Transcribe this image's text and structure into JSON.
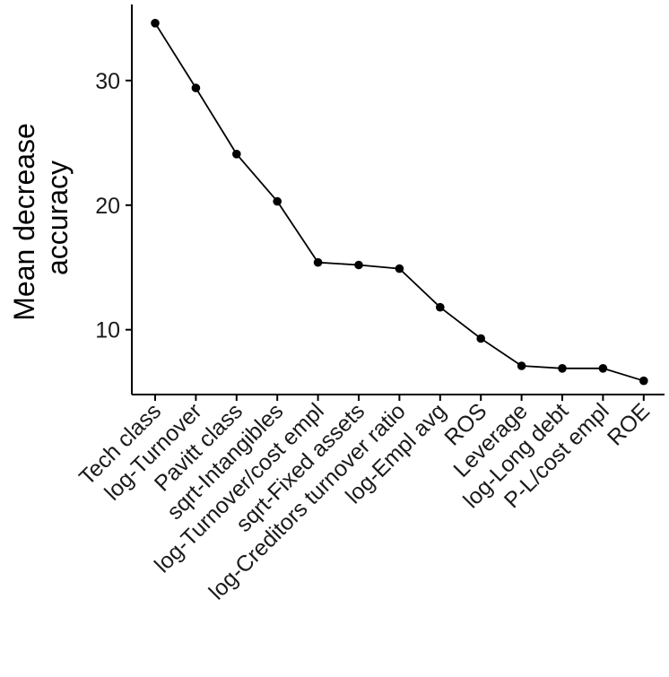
{
  "chart_data": {
    "type": "line",
    "title": "",
    "xlabel": "",
    "ylabel": "Mean decrease accuracy",
    "ylabel_lines": [
      "Mean decrease",
      "accuracy"
    ],
    "categories": [
      "Tech class",
      "log-Turnover",
      "Pavitt class",
      "sqrt-Intangibles",
      "log-Turnover/cost empl",
      "sqrt-Fixed assets",
      "log-Creditors turnover ratio",
      "log-Empl avg",
      "ROS",
      "Leverage",
      "log-Long debt",
      "P-L/cost empl",
      "ROE"
    ],
    "series": [
      {
        "values": [
          34.6,
          29.4,
          24.1,
          20.3,
          15.4,
          15.2,
          14.9,
          11.8,
          9.3,
          7.1,
          6.9,
          6.9,
          5.9
        ]
      }
    ],
    "yticks": [
      10,
      20,
      30
    ],
    "ylim": [
      4.8,
      36.1
    ],
    "grid": false,
    "legend": "none",
    "colors": {
      "line": "#000000",
      "marker": "#000000",
      "axis": "#000000"
    }
  }
}
